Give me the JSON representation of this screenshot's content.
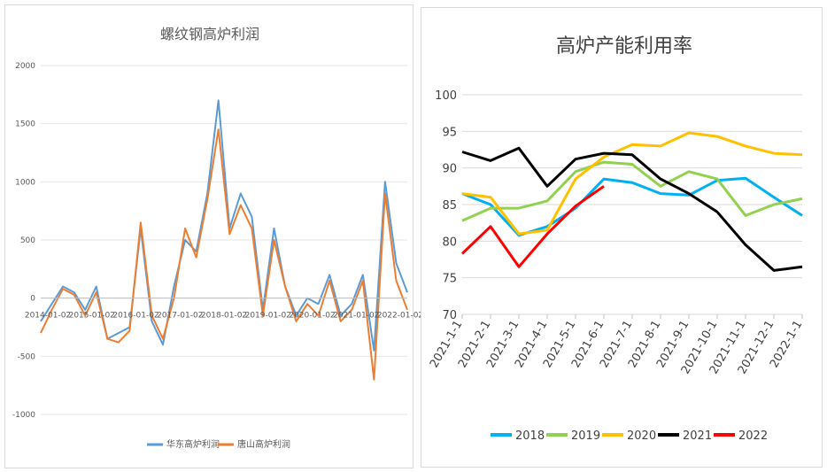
{
  "left_chart": {
    "title": "螺纹钢高炉利润",
    "legend": [
      "华东高炉利润",
      "唐山高炉利润"
    ],
    "colors": {
      "series1": "#5b9bd5",
      "series2": "#ed7d31"
    }
  },
  "right_chart": {
    "title": "高炉产能利用率",
    "legend": [
      "2018",
      "2019",
      "2020",
      "2021",
      "2022"
    ],
    "colors": {
      "2018": "#00b0f0",
      "2019": "#92d050",
      "2020": "#ffc000",
      "2021": "#000000",
      "2022": "#ff0000"
    }
  },
  "chart_data": [
    {
      "type": "line",
      "title": "螺纹钢高炉利润",
      "xlabel": "",
      "ylabel": "",
      "ylim": [
        -1000,
        2000
      ],
      "yticks": [
        -1000,
        -500,
        0,
        500,
        1000,
        1500,
        2000
      ],
      "x_ticks": [
        "2014-01-02",
        "2015-01-02",
        "2016-01-02",
        "2017-01-02",
        "2018-01-02",
        "2019-01-02",
        "2020-01-02",
        "2021-01-02",
        "2022-01-02"
      ],
      "x": [
        "2014-01",
        "2014-04",
        "2014-07",
        "2014-10",
        "2015-01",
        "2015-04",
        "2015-07",
        "2015-10",
        "2016-01",
        "2016-04",
        "2016-07",
        "2016-10",
        "2017-01",
        "2017-04",
        "2017-07",
        "2017-10",
        "2018-01",
        "2018-04",
        "2018-07",
        "2018-10",
        "2019-01",
        "2019-04",
        "2019-07",
        "2019-10",
        "2020-01",
        "2020-04",
        "2020-07",
        "2020-10",
        "2021-01",
        "2021-04",
        "2021-07",
        "2021-10",
        "2022-01",
        "2022-04"
      ],
      "series": [
        {
          "name": "华东高炉利润",
          "values": [
            -200,
            -50,
            100,
            50,
            -100,
            100,
            -350,
            -300,
            -250,
            600,
            -200,
            -400,
            100,
            500,
            400,
            900,
            1700,
            600,
            900,
            700,
            -100,
            600,
            100,
            -150,
            0,
            -50,
            200,
            -150,
            -50,
            200,
            -450,
            1000,
            300,
            50
          ]
        },
        {
          "name": "唐山高炉利润",
          "values": [
            -300,
            -100,
            80,
            30,
            -150,
            50,
            -350,
            -380,
            -280,
            650,
            -150,
            -350,
            0,
            600,
            350,
            850,
            1450,
            550,
            800,
            600,
            -150,
            500,
            100,
            -200,
            -50,
            -150,
            150,
            -200,
            -100,
            150,
            -700,
            900,
            150,
            -100
          ]
        }
      ]
    },
    {
      "type": "line",
      "title": "高炉产能利用率",
      "xlabel": "",
      "ylabel": "",
      "ylim": [
        70,
        100
      ],
      "yticks": [
        70,
        75,
        80,
        85,
        90,
        95,
        100
      ],
      "categories": [
        "2021-1-1",
        "2021-2-1",
        "2021-3-1",
        "2021-4-1",
        "2021-5-1",
        "2021-6-1",
        "2021-7-1",
        "2021-8-1",
        "2021-9-1",
        "2021-10-1",
        "2021-11-1",
        "2021-12-1",
        "2022-1-1"
      ],
      "series": [
        {
          "name": "2018",
          "values": [
            86.5,
            85.0,
            80.8,
            82.0,
            84.5,
            88.5,
            88.0,
            86.5,
            86.3,
            88.3,
            88.6,
            86.0,
            83.5
          ]
        },
        {
          "name": "2019",
          "values": [
            82.8,
            84.5,
            84.5,
            85.5,
            89.5,
            90.8,
            90.5,
            87.5,
            89.5,
            88.5,
            83.5,
            85.0,
            85.8
          ]
        },
        {
          "name": "2020",
          "values": [
            86.5,
            86.0,
            81.0,
            81.5,
            88.5,
            91.5,
            93.2,
            93.0,
            94.8,
            94.3,
            93.0,
            92.0,
            91.8
          ]
        },
        {
          "name": "2021",
          "values": [
            92.2,
            91.0,
            92.7,
            87.5,
            91.2,
            92.0,
            91.8,
            88.5,
            86.5,
            84.0,
            79.5,
            76.0,
            76.5
          ]
        },
        {
          "name": "2022",
          "values": [
            78.3,
            82.0,
            76.5,
            81.0,
            84.8,
            87.5,
            null,
            null,
            null,
            null,
            null,
            null,
            null
          ]
        }
      ]
    }
  ]
}
